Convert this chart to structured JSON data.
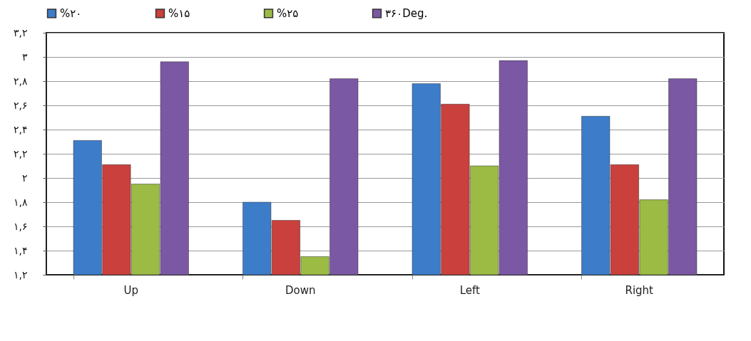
{
  "chart_data": {
    "type": "bar",
    "categories": [
      "Up",
      "Down",
      "Left",
      "Right"
    ],
    "series": [
      {
        "name": "%۲۰",
        "color": "#3d7cc9",
        "values": [
          2.31,
          1.8,
          2.78,
          2.51
        ]
      },
      {
        "name": "%۱۵",
        "color": "#c9403d",
        "values": [
          2.11,
          1.65,
          2.61,
          2.11
        ]
      },
      {
        "name": "%۲۵",
        "color": "#9bbb45",
        "values": [
          1.95,
          1.35,
          2.1,
          1.82
        ]
      },
      {
        "name": "۳۶۰Deg.",
        "color": "#7b58a3",
        "values": [
          2.96,
          2.82,
          2.97,
          2.82
        ]
      }
    ],
    "ylim": [
      1.2,
      3.2
    ],
    "yticks": [
      {
        "value": 1.2,
        "label": "۱,۲"
      },
      {
        "value": 1.4,
        "label": "۱,۴"
      },
      {
        "value": 1.6,
        "label": "۱,۶"
      },
      {
        "value": 1.8,
        "label": "۱,۸"
      },
      {
        "value": 2,
        "label": "۲"
      },
      {
        "value": 2.2,
        "label": "۲,۲"
      },
      {
        "value": 2.4,
        "label": "۲,۴"
      },
      {
        "value": 2.6,
        "label": "۲,۶"
      },
      {
        "value": 2.8,
        "label": "۲,۸"
      },
      {
        "value": 3,
        "label": "۳"
      },
      {
        "value": 3.2,
        "label": "۳,۲"
      }
    ],
    "grid": "y",
    "legend": "top"
  }
}
